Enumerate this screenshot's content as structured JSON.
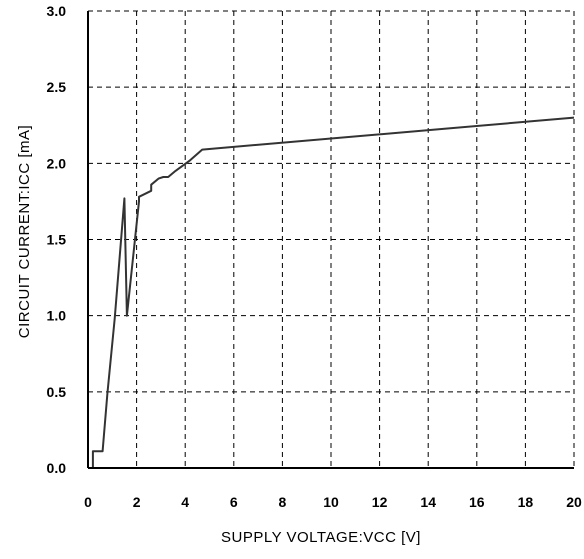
{
  "chart_data": {
    "type": "line",
    "title": "",
    "xlabel": "SUPPLY VOLTAGE:VCC [V]",
    "ylabel": "CIRCUIT CURRENT:ICC [mA]",
    "xlim": [
      0,
      20
    ],
    "ylim": [
      0,
      30
    ],
    "grid": true,
    "grid_style": "dashed",
    "x_ticks": [
      0,
      2,
      4,
      6,
      8,
      10,
      12,
      14,
      16,
      18,
      20
    ],
    "x_tick_labels": [
      "0",
      "2",
      "4",
      "6",
      "8",
      "10",
      "12",
      "14",
      "16",
      "18",
      "20"
    ],
    "y_ticks": [
      0,
      5,
      10,
      15,
      20,
      25,
      30
    ],
    "y_tick_labels": [
      "0.0",
      "0.5",
      "1.0",
      "1.5",
      "2.0",
      "2.5",
      "3.0"
    ],
    "series": [
      {
        "color": "#333333",
        "x": [
          0.0,
          0.2,
          0.2,
          0.6,
          0.8,
          1.1,
          1.5,
          1.6,
          2.1,
          2.1,
          2.6,
          2.6,
          2.9,
          3.1,
          3.3,
          3.6,
          4.2,
          4.7,
          20.0
        ],
        "y": [
          0.0,
          0.0,
          1.1,
          1.1,
          4.9,
          9.8,
          17.7,
          10.0,
          17.5,
          17.8,
          18.2,
          18.6,
          19.0,
          19.1,
          19.1,
          19.5,
          20.2,
          20.9,
          23.0
        ]
      }
    ]
  }
}
